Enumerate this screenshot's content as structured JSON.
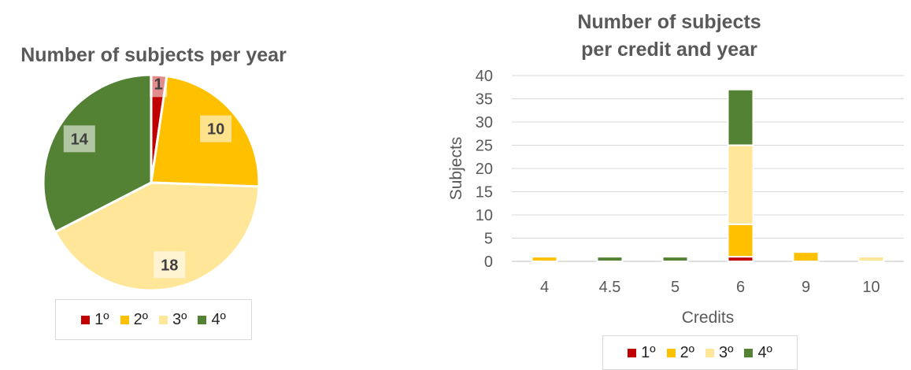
{
  "chart_data": [
    {
      "type": "pie",
      "title": "Number of subjects per year",
      "categories": [
        "1º",
        "2º",
        "3º",
        "4º"
      ],
      "values": [
        1,
        10,
        18,
        14
      ],
      "colors": [
        "#c00000",
        "#ffc000",
        "#ffe699",
        "#548235"
      ],
      "data_labels": [
        "1",
        "10",
        "18",
        "14"
      ],
      "legend": {
        "position": "bottom",
        "entries": [
          "1º",
          "2º",
          "3º",
          "4º"
        ]
      }
    },
    {
      "type": "bar",
      "stacked": true,
      "title_lines": [
        "Number of subjects",
        "per credit and year"
      ],
      "categories": [
        "4",
        "4.5",
        "5",
        "6",
        "9",
        "10"
      ],
      "series": [
        {
          "name": "1º",
          "color": "#c00000",
          "values": [
            0,
            0,
            0,
            1,
            0,
            0
          ]
        },
        {
          "name": "2º",
          "color": "#ffc000",
          "values": [
            1,
            0,
            0,
            7,
            2,
            0
          ]
        },
        {
          "name": "3º",
          "color": "#ffe699",
          "values": [
            0,
            0,
            0,
            17,
            0,
            1
          ]
        },
        {
          "name": "4º",
          "color": "#548235",
          "values": [
            0,
            1,
            1,
            12,
            0,
            0
          ]
        }
      ],
      "xlabel": "Credits",
      "ylabel": "Subjects",
      "ylim": [
        0,
        40
      ],
      "yticks": [
        "0",
        "5",
        "10",
        "15",
        "20",
        "25",
        "30",
        "35",
        "40"
      ],
      "grid": true,
      "legend": {
        "position": "bottom",
        "entries": [
          "1º",
          "2º",
          "3º",
          "4º"
        ]
      }
    }
  ]
}
